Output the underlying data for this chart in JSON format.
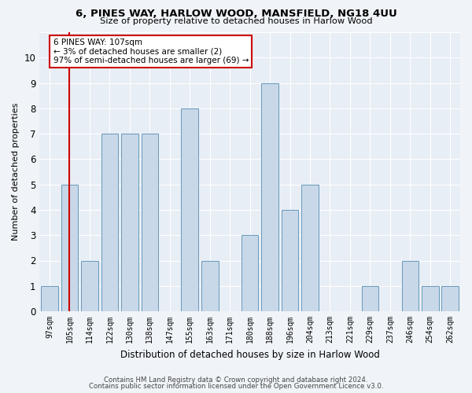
{
  "title1": "6, PINES WAY, HARLOW WOOD, MANSFIELD, NG18 4UU",
  "title2": "Size of property relative to detached houses in Harlow Wood",
  "xlabel": "Distribution of detached houses by size in Harlow Wood",
  "ylabel": "Number of detached properties",
  "categories": [
    "97sqm",
    "105sqm",
    "114sqm",
    "122sqm",
    "130sqm",
    "138sqm",
    "147sqm",
    "155sqm",
    "163sqm",
    "171sqm",
    "180sqm",
    "188sqm",
    "196sqm",
    "204sqm",
    "213sqm",
    "221sqm",
    "229sqm",
    "237sqm",
    "246sqm",
    "254sqm",
    "262sqm"
  ],
  "values": [
    1,
    5,
    2,
    7,
    7,
    7,
    0,
    8,
    2,
    0,
    3,
    9,
    4,
    5,
    0,
    0,
    1,
    0,
    2,
    1,
    1
  ],
  "bar_color": "#c8d8e8",
  "bar_edge_color": "#6699bb",
  "highlight_bar_index": 1,
  "highlight_line_color": "#cc0000",
  "ylim": [
    0,
    11
  ],
  "yticks": [
    0,
    1,
    2,
    3,
    4,
    5,
    6,
    7,
    8,
    9,
    10,
    11
  ],
  "annotation_title": "6 PINES WAY: 107sqm",
  "annotation_line1": "← 3% of detached houses are smaller (2)",
  "annotation_line2": "97% of semi-detached houses are larger (69) →",
  "annotation_box_color": "#ffffff",
  "annotation_box_edge_color": "#cc0000",
  "footer1": "Contains HM Land Registry data © Crown copyright and database right 2024.",
  "footer2": "Contains public sector information licensed under the Open Government Licence v3.0.",
  "bg_color": "#f0f4f8",
  "plot_bg_color": "#e8eef5"
}
